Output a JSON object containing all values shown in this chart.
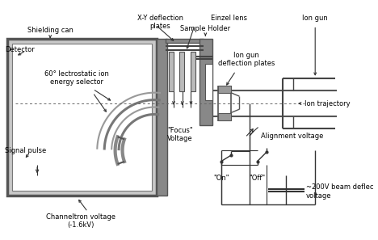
{
  "line_color": "#333333",
  "dark_gray": "#666666",
  "mid_gray": "#999999",
  "light_gray": "#cccccc",
  "labels": {
    "detector": "Detector",
    "shielding_can": "Shielding can",
    "xy_deflection": "X-Y deflection\nplates",
    "einzel_lens": "Einzel lens",
    "sample_holder": "Sample Holder",
    "ion_gun": "Ion gun",
    "energy_selector": "60° lectrostatic ion\nenergy selector",
    "signal_pulse": "Signal pulse",
    "channeltron": "Channeltron voltage\n(-1.6kV)",
    "focus_voltage": "\"Focus\"\nVoltage",
    "ion_gun_defl": "Ion gun\ndeflection plates",
    "ion_trajectory": "Ion trajectory",
    "alignment_voltage": "Alignment voltage",
    "on_label": "\"On\"",
    "off_label": "\"Off\"",
    "beam_deflec": "~200V beam deflec\nvoltage"
  }
}
